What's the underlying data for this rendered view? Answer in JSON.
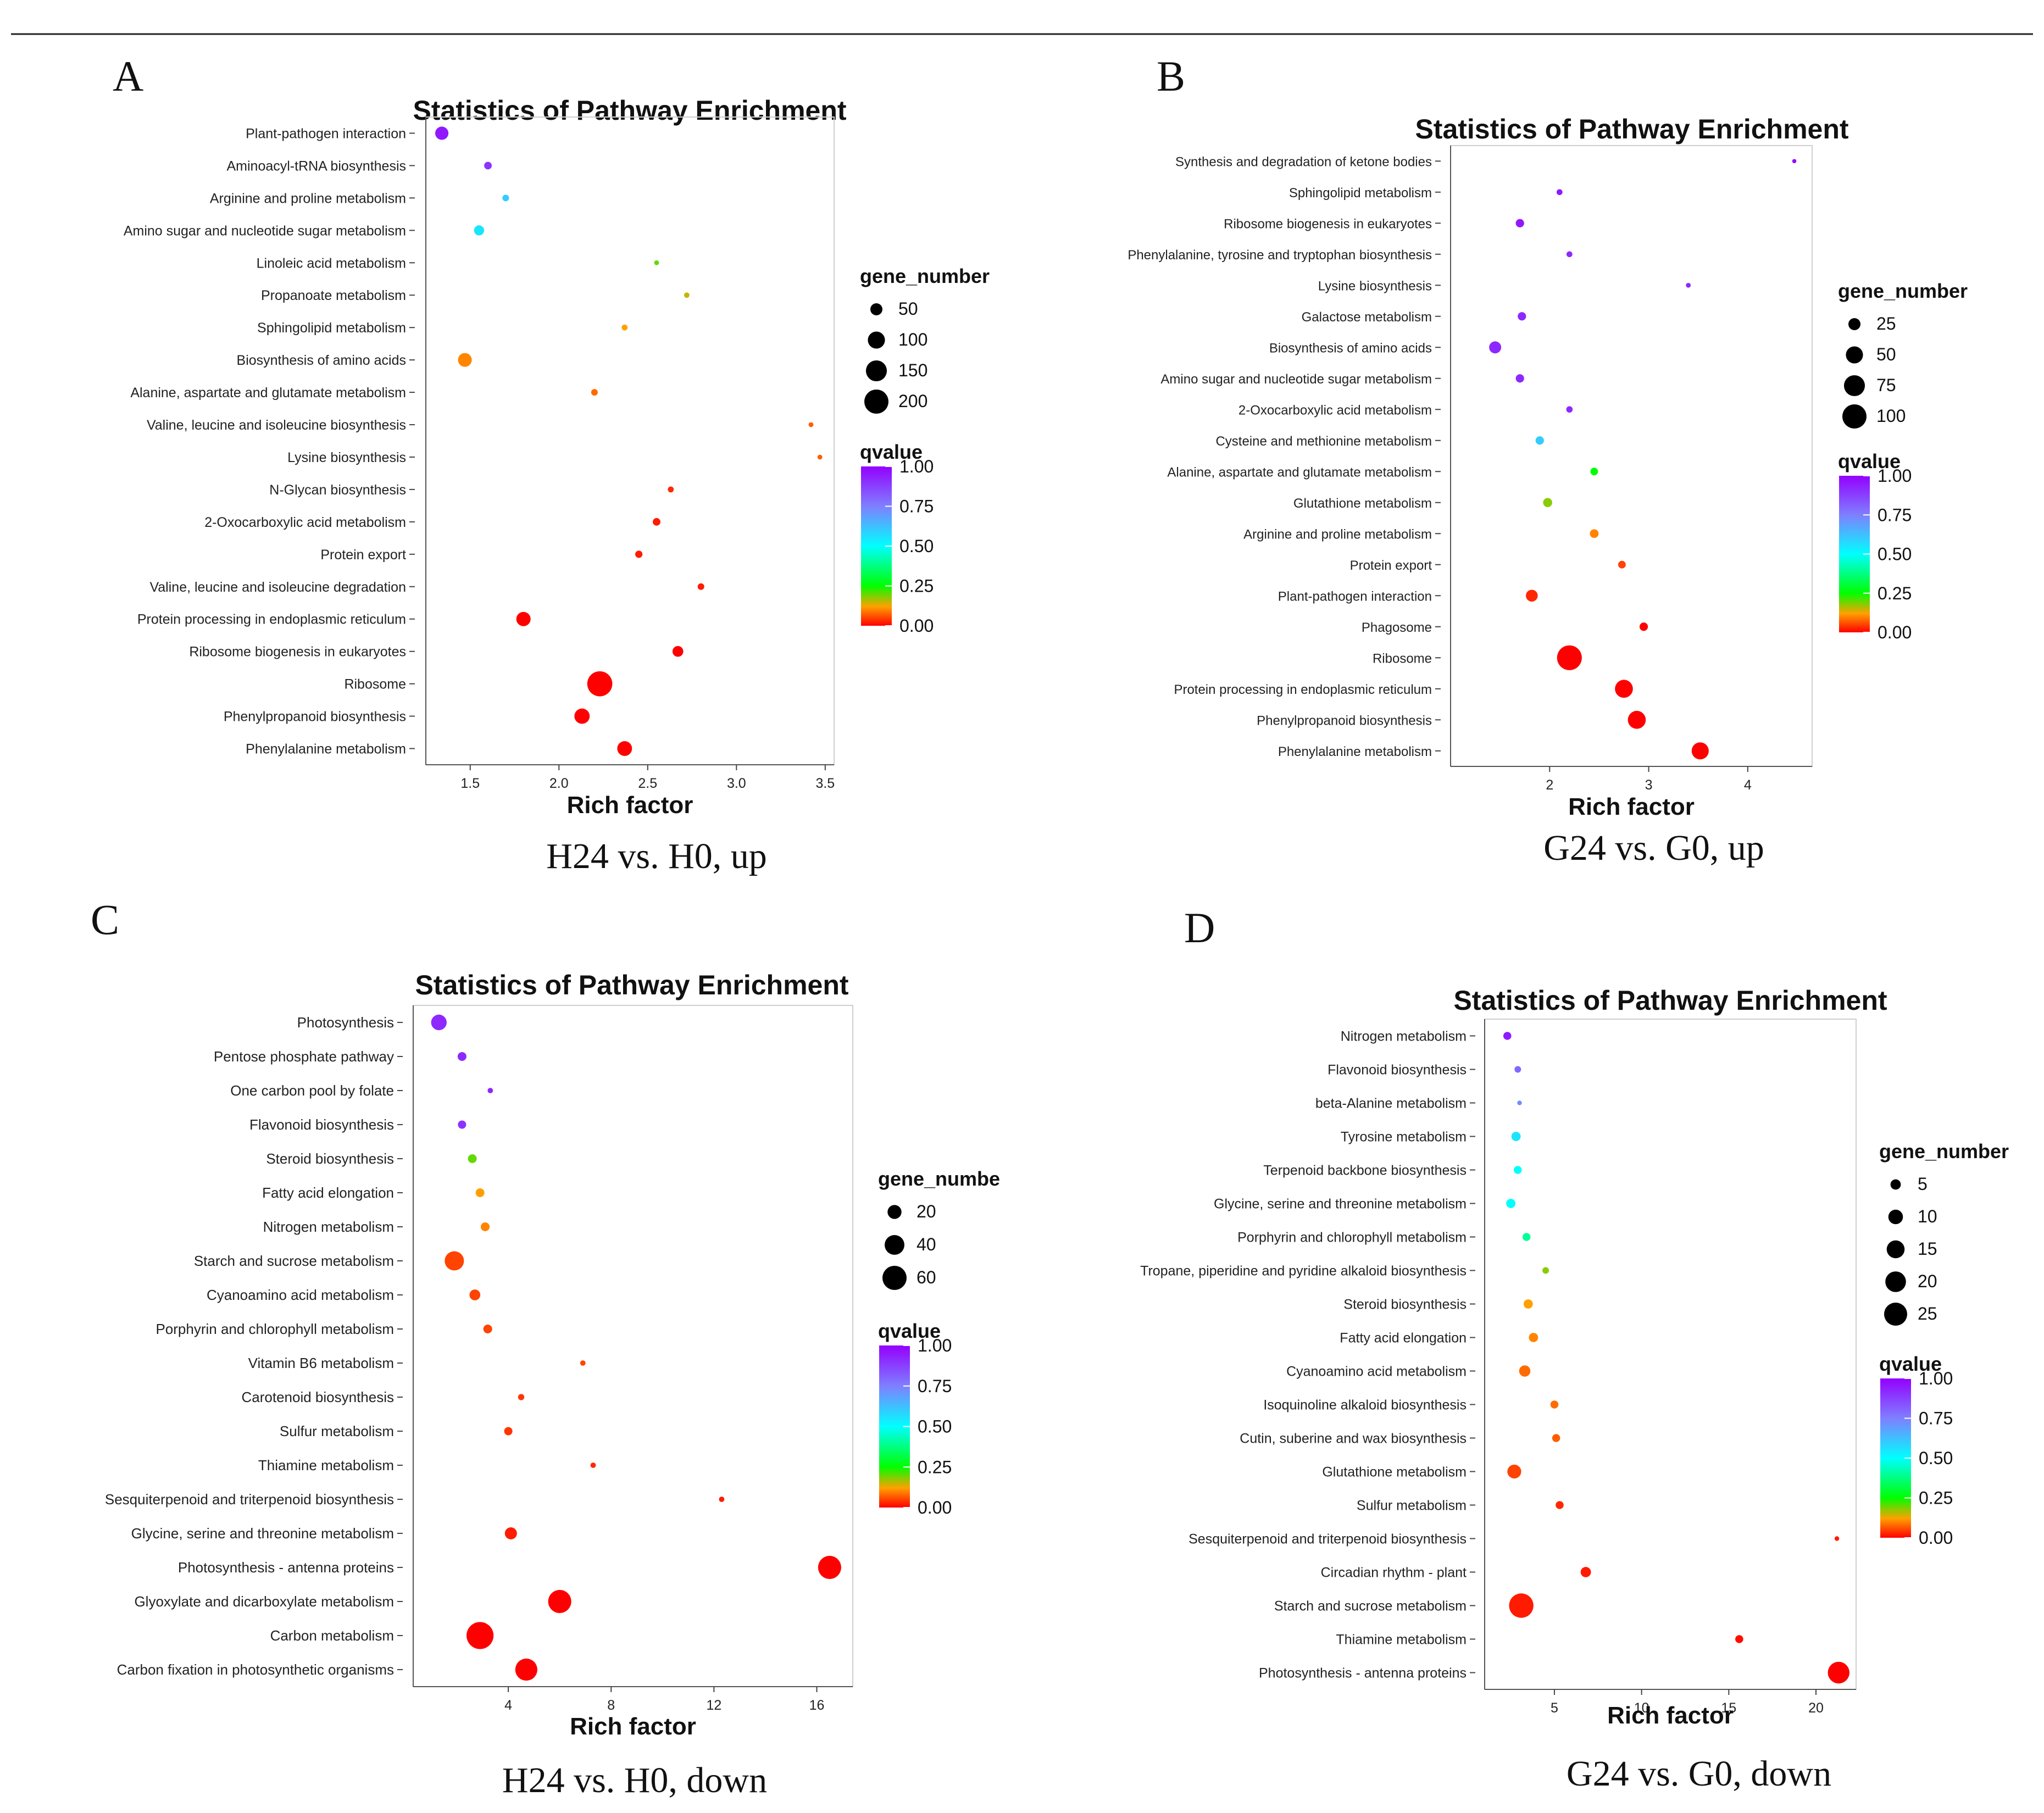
{
  "colors": {
    "q0": "#ff0000",
    "q25": "#00ff00",
    "q50": "#00ffff",
    "q75": "#7f7fff",
    "q100": "#9400ff",
    "border_line": "#555555"
  },
  "chart_data": [
    {
      "type": "scatter",
      "panel": "A",
      "title": "Statistics of Pathway Enrichment",
      "xlabel": "Rich factor",
      "caption": "H24 vs. H0, up",
      "xlim": [
        1.25,
        3.55
      ],
      "xticks": [
        1.5,
        2.0,
        2.5,
        3.0,
        3.5
      ],
      "xtick_labels": [
        "1.5",
        "2.0",
        "2.5",
        "3.0",
        "3.5"
      ],
      "size_legend": {
        "title": "gene_number",
        "values": [
          50,
          100,
          150,
          200
        ],
        "labels": [
          "50",
          "100",
          "150",
          "200"
        ],
        "max": 200
      },
      "color_legend": {
        "title": "qvalue",
        "labels": [
          "1.00",
          "0.75",
          "0.50",
          "0.25",
          "0.00"
        ]
      },
      "categories": [
        "Plant-pathogen interaction",
        "Aminoacyl-tRNA biosynthesis",
        "Arginine and proline metabolism",
        "Amino sugar and nucleotide sugar metabolism",
        "Linoleic acid metabolism",
        "Propanoate metabolism",
        "Sphingolipid metabolism",
        "Biosynthesis of amino acids",
        "Alanine, aspartate and glutamate metabolism",
        "Valine, leucine and isoleucine biosynthesis",
        "Lysine biosynthesis",
        "N-Glycan biosynthesis",
        "2-Oxocarboxylic acid metabolism",
        "Protein export",
        "Valine, leucine and isoleucine degradation",
        "Protein processing in endoplasmic reticulum",
        "Ribosome biogenesis in eukaryotes",
        "Ribosome",
        "Phenylpropanoid biosynthesis",
        "Phenylalanine metabolism"
      ],
      "rich_factor": [
        1.34,
        1.6,
        1.7,
        1.55,
        2.55,
        2.72,
        2.37,
        1.47,
        2.2,
        3.42,
        3.47,
        2.63,
        2.55,
        2.45,
        2.8,
        1.8,
        2.67,
        2.23,
        2.13,
        2.37
      ],
      "gene_number": [
        60,
        20,
        15,
        35,
        8,
        10,
        12,
        65,
        15,
        8,
        8,
        12,
        20,
        18,
        15,
        70,
        40,
        215,
        80,
        75
      ],
      "qvalue": [
        0.95,
        0.9,
        0.6,
        0.55,
        0.2,
        0.15,
        0.12,
        0.1,
        0.08,
        0.07,
        0.07,
        0.03,
        0.02,
        0.02,
        0.02,
        0.0,
        0.0,
        0.0,
        0.0,
        0.0
      ]
    },
    {
      "type": "scatter",
      "panel": "B",
      "title": "Statistics of Pathway Enrichment",
      "xlabel": "Rich factor",
      "caption": "G24 vs. G0, up",
      "xlim": [
        1.0,
        4.65
      ],
      "xticks": [
        2,
        3,
        4
      ],
      "xtick_labels": [
        "2",
        "3",
        "4"
      ],
      "size_legend": {
        "title": "gene_number",
        "values": [
          25,
          50,
          75,
          100
        ],
        "labels": [
          "25",
          "50",
          "75",
          "100"
        ],
        "max": 100
      },
      "color_legend": {
        "title": "qvalue",
        "labels": [
          "1.00",
          "0.75",
          "0.50",
          "0.25",
          "0.00"
        ]
      },
      "categories": [
        "Synthesis and degradation of ketone bodies",
        "Sphingolipid metabolism",
        "Ribosome biogenesis in eukaryotes",
        "Phenylalanine, tyrosine and tryptophan biosynthesis",
        "Lysine biosynthesis",
        "Galactose metabolism",
        "Biosynthesis of amino acids",
        "Amino sugar and nucleotide sugar metabolism",
        "2-Oxocarboxylic acid metabolism",
        "Cysteine and methionine metabolism",
        "Alanine, aspartate and glutamate metabolism",
        "Glutathione metabolism",
        "Arginine and proline metabolism",
        "Protein export",
        "Plant-pathogen interaction",
        "Phagosome",
        "Ribosome",
        "Protein processing in endoplasmic reticulum",
        "Phenylpropanoid biosynthesis",
        "Phenylalanine metabolism"
      ],
      "rich_factor": [
        4.47,
        2.1,
        1.7,
        2.2,
        3.4,
        1.72,
        1.45,
        1.7,
        2.2,
        1.9,
        2.45,
        1.98,
        2.45,
        2.73,
        1.82,
        2.95,
        2.2,
        2.75,
        2.88,
        3.52
      ],
      "gene_number": [
        3,
        6,
        12,
        6,
        4,
        12,
        25,
        12,
        7,
        12,
        10,
        14,
        13,
        10,
        24,
        12,
        105,
        55,
        55,
        50
      ],
      "qvalue": [
        0.98,
        0.95,
        0.95,
        0.92,
        0.92,
        0.92,
        0.92,
        0.92,
        0.92,
        0.6,
        0.25,
        0.18,
        0.1,
        0.05,
        0.03,
        0.0,
        0.0,
        0.0,
        0.0,
        0.0
      ]
    },
    {
      "type": "scatter",
      "panel": "C",
      "title": "Statistics of Pathway Enrichment",
      "xlabel": "Rich factor",
      "caption": "H24 vs. H0, down",
      "xlim": [
        0.3,
        17.4
      ],
      "xticks": [
        4,
        8,
        12,
        16
      ],
      "xtick_labels": [
        "4",
        "8",
        "12",
        "16"
      ],
      "size_legend": {
        "title": "gene_numbe",
        "values": [
          20,
          40,
          60
        ],
        "labels": [
          "20",
          "40",
          "60"
        ],
        "max": 60
      },
      "color_legend": {
        "title": "qvalue",
        "labels": [
          "1.00",
          "0.75",
          "0.50",
          "0.25",
          "0.00"
        ]
      },
      "categories": [
        "Photosynthesis",
        "Pentose phosphate pathway",
        "One carbon pool by folate",
        "Flavonoid biosynthesis",
        "Steroid biosynthesis",
        "Fatty acid elongation",
        "Nitrogen metabolism",
        "Starch and sucrose metabolism",
        "Cyanoamino acid metabolism",
        "Porphyrin and chlorophyll metabolism",
        "Vitamin B6 metabolism",
        "Carotenoid biosynthesis",
        "Sulfur metabolism",
        "Thiamine metabolism",
        "Sesquiterpenoid and triterpenoid biosynthesis",
        "Glycine, serine and threonine metabolism",
        "Photosynthesis - antenna proteins",
        "Glyoxylate and dicarboxylate metabolism",
        "Carbon metabolism",
        "Carbon fixation in photosynthetic organisms"
      ],
      "rich_factor": [
        1.3,
        2.2,
        3.3,
        2.2,
        2.6,
        2.9,
        3.1,
        1.9,
        2.7,
        3.2,
        6.9,
        4.5,
        4.0,
        7.3,
        12.3,
        4.1,
        16.5,
        6.0,
        2.9,
        4.7
      ],
      "gene_number": [
        25,
        8,
        3,
        7,
        8,
        8,
        8,
        38,
        12,
        8,
        3,
        4,
        7,
        3,
        3,
        15,
        55,
        55,
        75,
        50
      ],
      "qvalue": [
        0.92,
        0.92,
        0.92,
        0.9,
        0.2,
        0.12,
        0.1,
        0.05,
        0.05,
        0.05,
        0.05,
        0.04,
        0.04,
        0.03,
        0.02,
        0.02,
        0.0,
        0.0,
        0.0,
        0.0
      ]
    },
    {
      "type": "scatter",
      "panel": "D",
      "title": "Statistics of Pathway Enrichment",
      "xlabel": "Rich factor",
      "caption": "G24 vs. G0, down",
      "xlim": [
        1.0,
        22.3
      ],
      "xticks": [
        5,
        10,
        15,
        20
      ],
      "xtick_labels": [
        "5",
        "10",
        "15",
        "20"
      ],
      "size_legend": {
        "title": "gene_number",
        "values": [
          5,
          10,
          15,
          20,
          25
        ],
        "labels": [
          "5",
          "10",
          "15",
          "20",
          "25"
        ],
        "max": 25
      },
      "color_legend": {
        "title": "qvalue",
        "labels": [
          "1.00",
          "0.75",
          "0.50",
          "0.25",
          "0.00"
        ]
      },
      "categories": [
        "Nitrogen metabolism",
        "Flavonoid biosynthesis",
        "beta-Alanine metabolism",
        "Tyrosine metabolism",
        "Terpenoid backbone biosynthesis",
        "Glycine, serine and threonine metabolism",
        "Porphyrin and chlorophyll metabolism",
        "Tropane, piperidine and pyridine alkaloid biosynthesis",
        "Steroid biosynthesis",
        "Fatty acid elongation",
        "Cyanoamino acid metabolism",
        "Isoquinoline alkaloid biosynthesis",
        "Cutin, suberine and wax biosynthesis",
        "Glutathione metabolism",
        "Sulfur metabolism",
        "Sesquiterpenoid and triterpenoid biosynthesis",
        "Circadian rhythm - plant",
        "Starch and sucrose metabolism",
        "Thiamine metabolism",
        "Photosynthesis - antenna proteins"
      ],
      "rich_factor": [
        2.3,
        2.9,
        3.0,
        2.8,
        2.9,
        2.5,
        3.4,
        4.5,
        3.5,
        3.8,
        3.3,
        5.0,
        5.1,
        2.7,
        5.3,
        21.2,
        6.8,
        3.1,
        15.6,
        21.3
      ],
      "gene_number": [
        3,
        2,
        1,
        4,
        3,
        4,
        3,
        2,
        4,
        4,
        6,
        3,
        3,
        9,
        3,
        1,
        5,
        28,
        3,
        22
      ],
      "qvalue": [
        0.95,
        0.8,
        0.72,
        0.55,
        0.5,
        0.5,
        0.4,
        0.18,
        0.12,
        0.1,
        0.08,
        0.08,
        0.07,
        0.05,
        0.03,
        0.02,
        0.02,
        0.02,
        0.01,
        0.0
      ]
    }
  ],
  "panel_letters": [
    "A",
    "B",
    "C",
    "D"
  ]
}
